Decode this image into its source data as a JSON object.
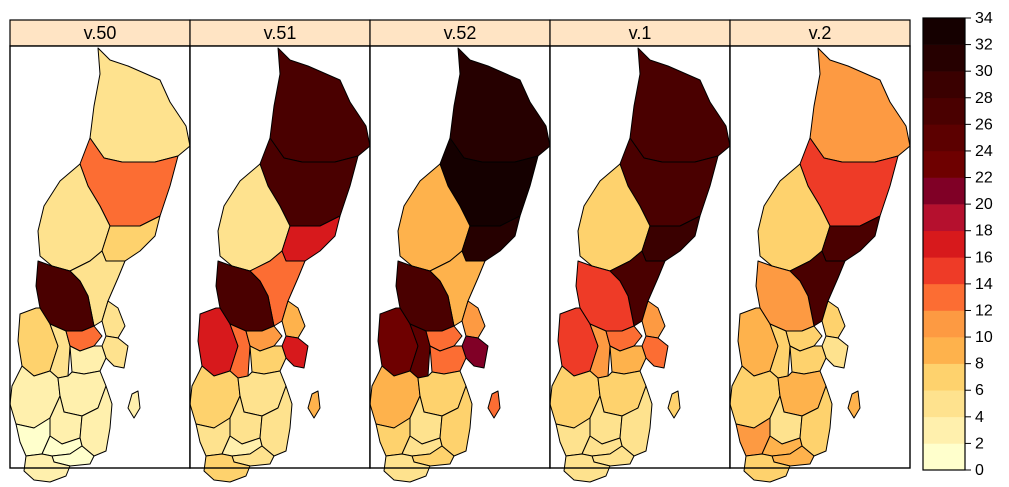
{
  "panels": [
    {
      "label": "v.50",
      "values": {
        "norr": 5,
        "vb": 13,
        "vn": 7,
        "jam": 4,
        "gav": 5,
        "dal": 26,
        "vrm": 7,
        "orb": 4,
        "vml": 13,
        "upp": 5,
        "sto": 4,
        "sod": 3,
        "og": 3,
        "vg": 3,
        "jon": 2,
        "kron": 1,
        "kal": 2,
        "got": 2,
        "ble": 1,
        "hal": 1,
        "sk": 2
      }
    },
    {
      "label": "v.51",
      "values": {
        "norr": 26,
        "vb": 26,
        "vn": 17,
        "jam": 5,
        "gav": 13,
        "dal": 27,
        "vrm": 17,
        "orb": 13,
        "vml": 10,
        "upp": 8,
        "sto": 17,
        "sod": 7,
        "og": 4,
        "vg": 7,
        "jon": 4,
        "kron": 3,
        "kal": 4,
        "got": 9,
        "ble": 4,
        "hal": 5,
        "sk": 6
      }
    },
    {
      "label": "v.52",
      "values": {
        "norr": 31,
        "vb": 34,
        "vn": 31,
        "jam": 9,
        "gav": 9,
        "dal": 27,
        "vrm": 23,
        "orb": 24,
        "vml": 13,
        "upp": 11,
        "sto": 21,
        "sod": 13,
        "og": 7,
        "vg": 9,
        "jon": 5,
        "kron": 5,
        "kal": 7,
        "got": 13,
        "ble": 6,
        "hal": 7,
        "sk": 5
      }
    },
    {
      "label": "v.1",
      "values": {
        "norr": 26,
        "vb": 27,
        "vn": 29,
        "jam": 7,
        "gav": 27,
        "dal": 15,
        "vrm": 15,
        "orb": 11,
        "vml": 13,
        "upp": 11,
        "sto": 13,
        "sod": 9,
        "og": 7,
        "vg": 7,
        "jon": 5,
        "kron": 4,
        "kal": 5,
        "got": 7,
        "ble": 4,
        "hal": 5,
        "sk": 4
      }
    },
    {
      "label": "v.2",
      "values": {
        "norr": 11,
        "vb": 15,
        "vn": 27,
        "jam": 7,
        "gav": 27,
        "dal": 11,
        "vrm": 9,
        "orb": 7,
        "vml": 7,
        "upp": 7,
        "sto": 5,
        "sod": 7,
        "og": 9,
        "vg": 7,
        "jon": 5,
        "kron": 9,
        "kal": 7,
        "got": 9,
        "ble": 9,
        "hal": 10,
        "sk": 7
      }
    }
  ],
  "legend": {
    "min": 0,
    "max": 34,
    "ticks": [
      "0",
      "2",
      "4",
      "6",
      "8",
      "10",
      "12",
      "14",
      "16",
      "18",
      "20",
      "22",
      "24",
      "26",
      "28",
      "30",
      "32",
      "34"
    ],
    "colors": [
      "#FFFFCC",
      "#FFF0AD",
      "#FEE28E",
      "#FED26D",
      "#FEB24C",
      "#FD9A42",
      "#FC6D33",
      "#EE3B27",
      "#D7191C",
      "#B5102E",
      "#800026",
      "#6E0000",
      "#5C0000",
      "#4A0000",
      "#3A0000",
      "#260000",
      "#150000"
    ]
  },
  "colors": {
    "strip_background": "#FFE4C4",
    "border": "#000000"
  }
}
